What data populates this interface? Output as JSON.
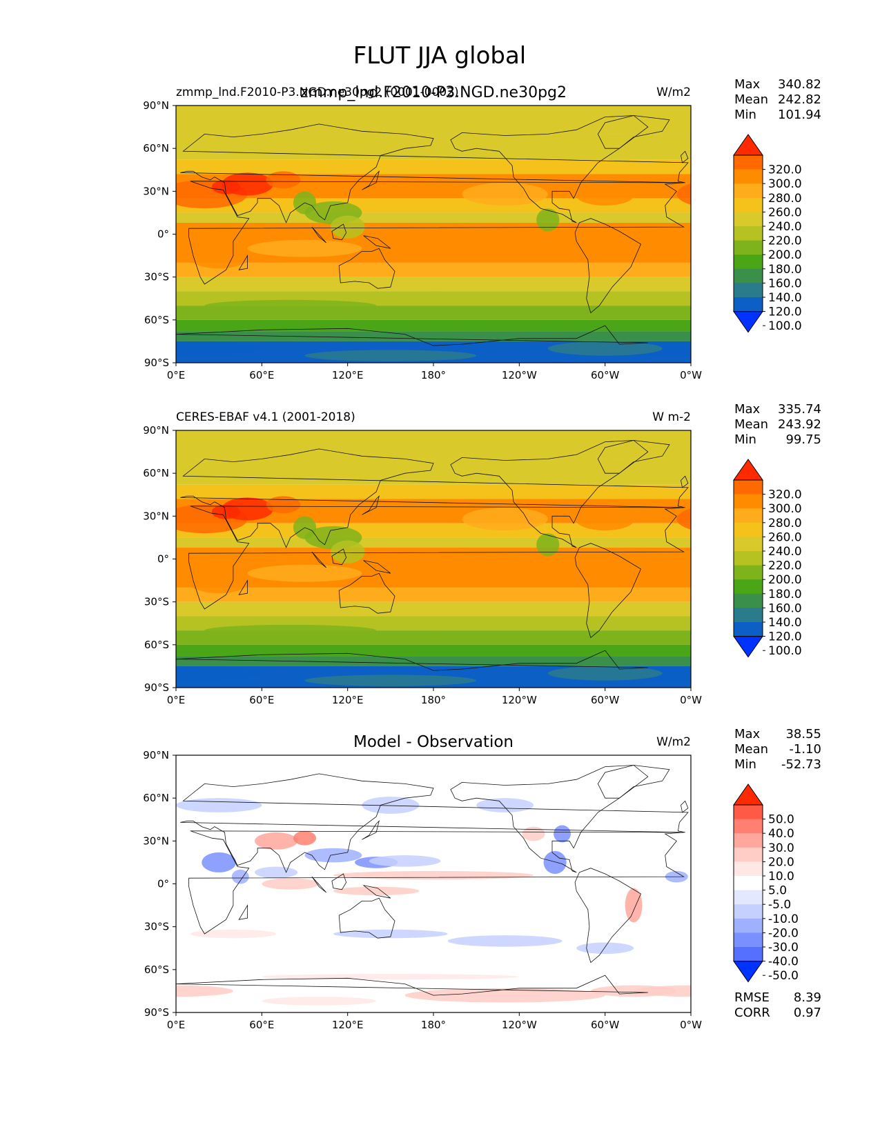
{
  "figure": {
    "title": "FLUT JJA global"
  },
  "chart_data": [
    {
      "type": "heatmap",
      "left_title": "zmmp_lnd.F2010-P3.NGD.ne30pg2 (0001-0002)",
      "center_title": "zmmp_lnd.F2010-P3.NGD.ne30pg2",
      "units": "W/m2",
      "stats": [
        {
          "label": "Max",
          "value": "340.82"
        },
        {
          "label": "Mean",
          "value": "242.82"
        },
        {
          "label": "Min",
          "value": "101.94"
        }
      ],
      "colorbar": {
        "levels": [
          "320.0",
          "300.0",
          "280.0",
          "260.0",
          "240.0",
          "220.0",
          "200.0",
          "180.0",
          "160.0",
          "140.0",
          "120.0",
          "100.0"
        ],
        "colors": [
          "#ff2a00",
          "#ff6a00",
          "#ff8c00",
          "#ffac1c",
          "#f5c21b",
          "#d9c92a",
          "#b5c222",
          "#7fb31b",
          "#4aa617",
          "#3a8f4a",
          "#2a7b8c",
          "#0b5fc5",
          "#0033ff"
        ]
      },
      "xticks": [
        "0°E",
        "60°E",
        "120°E",
        "180°",
        "120°W",
        "60°W",
        "0°W"
      ],
      "yticks": [
        "90°N",
        "60°N",
        "30°N",
        "0°",
        "30°S",
        "60°S",
        "90°S"
      ],
      "xlim": [
        0,
        360
      ],
      "ylim": [
        -90,
        90
      ]
    },
    {
      "type": "heatmap",
      "left_title": "CERES-EBAF v4.1 (2001-2018)",
      "center_title": "",
      "units": "W m-2",
      "stats": [
        {
          "label": "Max",
          "value": "335.74"
        },
        {
          "label": "Mean",
          "value": "243.92"
        },
        {
          "label": "Min",
          "value": "99.75"
        }
      ],
      "colorbar": {
        "levels": [
          "320.0",
          "300.0",
          "280.0",
          "260.0",
          "240.0",
          "220.0",
          "200.0",
          "180.0",
          "160.0",
          "140.0",
          "120.0",
          "100.0"
        ],
        "colors": [
          "#ff2a00",
          "#ff6a00",
          "#ff8c00",
          "#ffac1c",
          "#f5c21b",
          "#d9c92a",
          "#b5c222",
          "#7fb31b",
          "#4aa617",
          "#3a8f4a",
          "#2a7b8c",
          "#0b5fc5",
          "#0033ff"
        ]
      },
      "xticks": [
        "0°E",
        "60°E",
        "120°E",
        "180°",
        "120°W",
        "60°W",
        "0°W"
      ],
      "yticks": [
        "90°N",
        "60°N",
        "30°N",
        "0°",
        "30°S",
        "60°S",
        "90°S"
      ],
      "xlim": [
        0,
        360
      ],
      "ylim": [
        -90,
        90
      ]
    },
    {
      "type": "heatmap",
      "left_title": "",
      "center_title": "Model - Observation",
      "units": "W/m2",
      "stats": [
        {
          "label": "Max",
          "value": "38.55"
        },
        {
          "label": "Mean",
          "value": "-1.10"
        },
        {
          "label": "Min",
          "value": "-52.73"
        }
      ],
      "colorbar": {
        "levels": [
          "50.0",
          "40.0",
          "30.0",
          "20.0",
          "10.0",
          "5.0",
          "-5.0",
          "-10.0",
          "-20.0",
          "-30.0",
          "-40.0",
          "-50.0"
        ],
        "colors": [
          "#ff2a00",
          "#ff5a45",
          "#ff8070",
          "#ffa79c",
          "#ffcdc6",
          "#ffe8e5",
          "#ffffff",
          "#e3e8ff",
          "#c5d0ff",
          "#9fb0ff",
          "#7a90ff",
          "#5570ff",
          "#0033ff"
        ]
      },
      "extra_stats": [
        {
          "label": "RMSE",
          "value": "8.39"
        },
        {
          "label": "CORR",
          "value": "0.97"
        }
      ],
      "xticks": [
        "0°E",
        "60°E",
        "120°E",
        "180°",
        "120°W",
        "60°W",
        "0°W"
      ],
      "yticks": [
        "90°N",
        "60°N",
        "30°N",
        "0°",
        "30°S",
        "60°S",
        "90°S"
      ],
      "xlim": [
        0,
        360
      ],
      "ylim": [
        -90,
        90
      ]
    }
  ]
}
